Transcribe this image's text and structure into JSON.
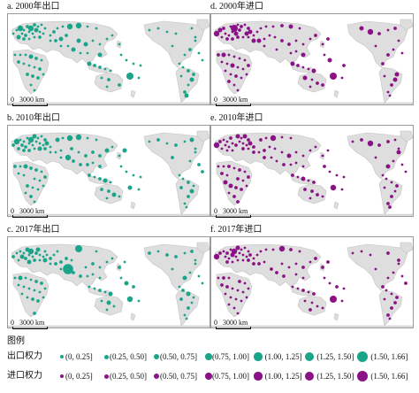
{
  "colors": {
    "export": "#1aa58a",
    "import": "#8b1186",
    "land": "#dedede",
    "coast": "#c2c2c2",
    "ocean": "#ffffff"
  },
  "panels": [
    {
      "title": "a. 2000年出口",
      "series": "export",
      "year": 2000,
      "scale_label": "3000 km",
      "scale_zero": "0"
    },
    {
      "title": "d. 2000年进口",
      "series": "import",
      "year": 2000,
      "scale_label": "3000 km",
      "scale_zero": "0"
    },
    {
      "title": "b. 2010年出口",
      "series": "export",
      "year": 2010,
      "scale_label": "3000 km",
      "scale_zero": "0"
    },
    {
      "title": "e. 2010年进口",
      "series": "import",
      "year": 2010,
      "scale_label": "3000 km",
      "scale_zero": "0"
    },
    {
      "title": "c. 2017年出口",
      "series": "export",
      "year": 2017,
      "scale_label": "3000 km",
      "scale_zero": "0"
    },
    {
      "title": "f. 2017年进口",
      "series": "import",
      "year": 2017,
      "scale_label": "3000 km",
      "scale_zero": "0"
    }
  ],
  "legend": {
    "title": "图例",
    "rows": [
      {
        "label": "出口权力",
        "series": "export"
      },
      {
        "label": "进口权力",
        "series": "import"
      }
    ],
    "classes": [
      "(0, 0.25]",
      "(0.25, 0.50]",
      "(0.50, 0.75]",
      "(0.75, 1.00]",
      "(1.00, 1.25]",
      "(1.25, 1.50]",
      "(1.50, 1.66]"
    ]
  }
}
